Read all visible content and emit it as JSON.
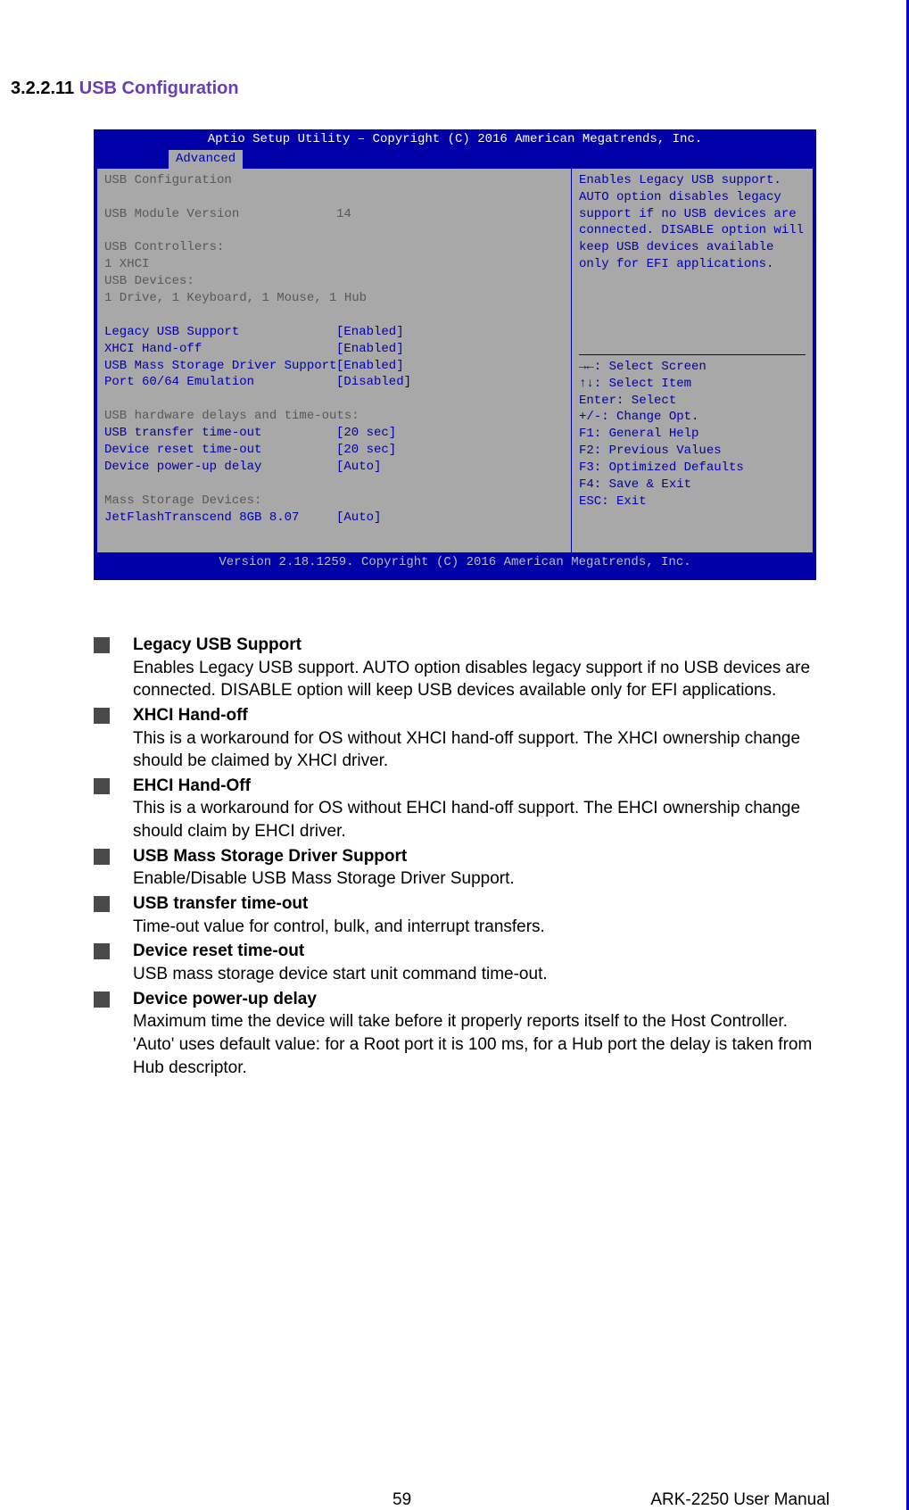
{
  "heading": {
    "num": "3.2.2.11",
    "title": "USB Configuration"
  },
  "bios": {
    "topbar": "Aptio Setup Utility – Copyright (C) 2016 American Megatrends, Inc.",
    "tab": "Advanced",
    "left": {
      "header": "USB Configuration",
      "module_version_label": "USB Module Version",
      "module_version_value": "14",
      "controllers_label": "USB Controllers:",
      "controllers_value": "    1 XHCI",
      "devices_label": "USB Devices:",
      "devices_value": "    1 Drive, 1 Keyboard, 1 Mouse, 1 Hub",
      "opts": [
        {
          "label": "Legacy USB Support",
          "value": "[Enabled]"
        },
        {
          "label": "XHCI Hand-off",
          "value": "[Enabled]"
        },
        {
          "label": "USB Mass Storage Driver Support",
          "value": "[Enabled]"
        },
        {
          "label": "Port 60/64 Emulation",
          "value": "[Disabled]"
        }
      ],
      "delays_header": "USB hardware delays and time-outs:",
      "delays": [
        {
          "label": "USB transfer time-out",
          "value": "[20 sec]"
        },
        {
          "label": "Device reset time-out",
          "value": "[20 sec]"
        },
        {
          "label": "Device power-up delay",
          "value": "[Auto]"
        }
      ],
      "storage_header": "Mass Storage Devices:",
      "storage": [
        {
          "label": "JetFlashTranscend 8GB 8.07",
          "value": "[Auto]"
        }
      ]
    },
    "right": {
      "help": "Enables Legacy USB support. AUTO option disables legacy support if no USB devices are connected. DISABLE option will keep USB devices available only for EFI applications.",
      "keys": [
        "→←: Select Screen",
        "↑↓: Select Item",
        "Enter: Select",
        "+/-: Change Opt.",
        "F1: General Help",
        "F2: Previous Values",
        "F3: Optimized Defaults",
        "F4: Save & Exit",
        "ESC: Exit"
      ]
    },
    "footer": "Version 2.18.1259. Copyright (C) 2016 American Megatrends, Inc."
  },
  "descriptions": [
    {
      "title": "Legacy USB Support",
      "text": "Enables Legacy USB support. AUTO option disables legacy support if no USB devices are connected. DISABLE option will keep USB devices available only for EFI applications."
    },
    {
      "title": "XHCI Hand-off",
      "text": "This is a workaround for OS without XHCI hand-off support. The XHCI ownership change should be claimed by XHCI driver."
    },
    {
      "title": "EHCI Hand-Off",
      "text": "This is a workaround for OS without EHCI hand-off support. The EHCI ownership change should claim by EHCI driver."
    },
    {
      "title": "USB Mass Storage Driver Support",
      "text": "Enable/Disable USB Mass Storage Driver Support."
    },
    {
      "title": "USB transfer time-out",
      "text": "Time-out value for control, bulk, and interrupt transfers."
    },
    {
      "title": "Device reset time-out",
      "text": "USB mass storage device start unit command time-out."
    },
    {
      "title": "Device power-up delay",
      "text": "Maximum time the device will take before it properly reports itself to the Host Controller. 'Auto' uses default value: for a Root port it is 100 ms, for a Hub port the delay is taken from Hub descriptor."
    }
  ],
  "footer": {
    "page": "59",
    "manual": "ARK-2250 User Manual"
  }
}
